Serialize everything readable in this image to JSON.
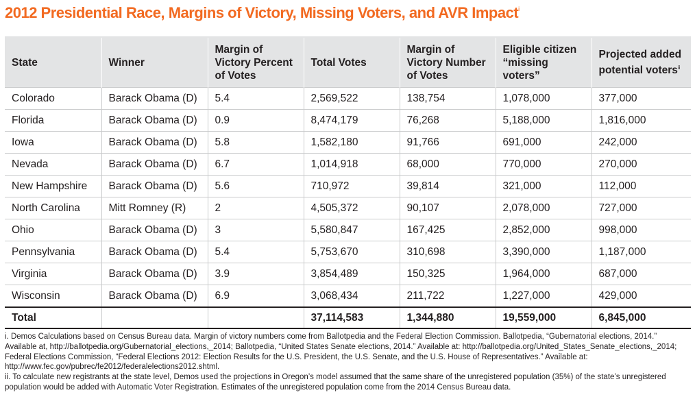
{
  "title": "2012 Presidential Race, Margins of Victory, Missing Voters, and AVR Impact",
  "title_note": "i",
  "headers": [
    {
      "label": "State",
      "note": ""
    },
    {
      "label": "Winner",
      "note": ""
    },
    {
      "label": "Margin of Victory Percent of Votes",
      "note": ""
    },
    {
      "label": "Total Votes",
      "note": ""
    },
    {
      "label": "Margin of Victory Number of Votes",
      "note": ""
    },
    {
      "label": "Eligible citizen “missing voters”",
      "note": ""
    },
    {
      "label": "Projected added potential voters",
      "note": "ii"
    }
  ],
  "rows": [
    [
      "Colorado",
      "Barack Obama (D)",
      "5.4",
      "2,569,522",
      "138,754",
      "1,078,000",
      "377,000"
    ],
    [
      "Florida",
      "Barack Obama (D)",
      "0.9",
      "8,474,179",
      "76,268",
      "5,188,000",
      "1,816,000"
    ],
    [
      "Iowa",
      "Barack Obama (D)",
      "5.8",
      "1,582,180",
      "91,766",
      "691,000",
      "242,000"
    ],
    [
      "Nevada",
      "Barack Obama (D)",
      "6.7",
      "1,014,918",
      "68,000",
      "770,000",
      "270,000"
    ],
    [
      "New Hampshire",
      "Barack Obama (D)",
      "5.6",
      "710,972",
      "39,814",
      "321,000",
      "112,000"
    ],
    [
      "North Carolina",
      "Mitt Romney (R)",
      "2",
      "4,505,372",
      "90,107",
      "2,078,000",
      "727,000"
    ],
    [
      "Ohio",
      "Barack Obama (D)",
      "3",
      "5,580,847",
      "167,425",
      "2,852,000",
      "998,000"
    ],
    [
      "Pennsylvania",
      "Barack Obama (D)",
      "5.4",
      "5,753,670",
      "310,698",
      "3,390,000",
      "1,187,000"
    ],
    [
      "Virginia",
      "Barack Obama (D)",
      "3.9",
      "3,854,489",
      "150,325",
      "1,964,000",
      "687,000"
    ],
    [
      "Wisconsin",
      "Barack Obama (D)",
      "6.9",
      "3,068,434",
      "211,722",
      "1,227,000",
      "429,000"
    ]
  ],
  "total": [
    "Total",
    "",
    "",
    "37,114,583",
    "1,344,880",
    "19,559,000",
    "6,845,000"
  ],
  "notes": [
    "i. Demos Calculations based on Census Bureau data. Margin of victory numbers come from Ballotpedia and the Federal Election Commission. Ballotpedia, “Gubernatorial elections, 2014.” Available at, http://ballotpedia.org/Gubernatorial_elections,_2014; Ballotpedia, “United States Senate elections, 2014.” Available at: http://ballotpedia.org/United_States_Senate_elections,_2014; Federal Elections Commission, “Federal Elections 2012: Election Results for the U.S. President, the U.S. Senate, and the U.S. House of Representatives.” Available at: http://www.fec.gov/pubrec/fe2012/federalelections2012.shtml.",
    "ii. To calculate new registrants at the state level, Demos used the projections in Oregon’s model assumed that the same share of the unregistered population (35%) of the state’s unregistered population would be added with Automatic Voter Registration. Estimates of the unregistered population come from the 2014 Census Bureau data."
  ]
}
